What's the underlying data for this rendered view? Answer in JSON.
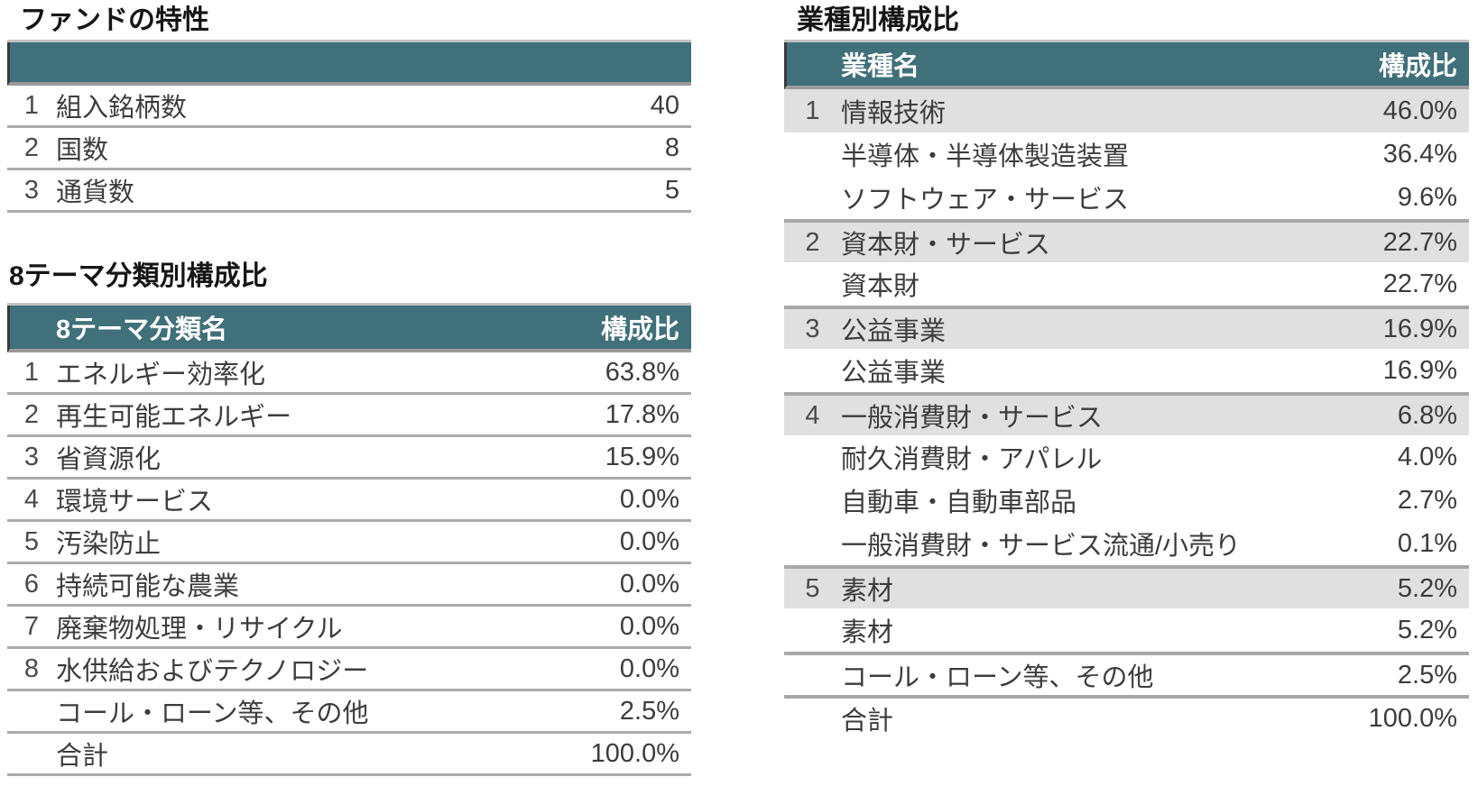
{
  "fund_characteristics": {
    "title": "ファンドの特性",
    "rows": [
      {
        "no": "1",
        "name": "組入銘柄数",
        "value": "40"
      },
      {
        "no": "2",
        "name": "国数",
        "value": "8"
      },
      {
        "no": "3",
        "name": "通貨数",
        "value": "5"
      }
    ]
  },
  "theme_table": {
    "title": "8テーマ分類別構成比",
    "header": {
      "name": "8テーマ分類名",
      "value": "構成比"
    },
    "rows": [
      {
        "no": "1",
        "name": "エネルギー効率化",
        "value": "63.8%"
      },
      {
        "no": "2",
        "name": "再生可能エネルギー",
        "value": "17.8%"
      },
      {
        "no": "3",
        "name": "省資源化",
        "value": "15.9%"
      },
      {
        "no": "4",
        "name": "環境サービス",
        "value": "0.0%"
      },
      {
        "no": "5",
        "name": "汚染防止",
        "value": "0.0%"
      },
      {
        "no": "6",
        "name": "持続可能な農業",
        "value": "0.0%"
      },
      {
        "no": "7",
        "name": "廃棄物処理・リサイクル",
        "value": "0.0%"
      },
      {
        "no": "8",
        "name": "水供給およびテクノロジー",
        "value": "0.0%"
      },
      {
        "no": "",
        "name": "コール・ローン等、その他",
        "value": "2.5%"
      },
      {
        "no": "",
        "name": "合計",
        "value": "100.0%"
      }
    ]
  },
  "industry_table": {
    "title": "業種別構成比",
    "header": {
      "name": "業種名",
      "value": "構成比"
    },
    "rows": [
      {
        "no": "1",
        "name": "情報技術",
        "value": "46.0%"
      },
      {
        "no": "",
        "name": "半導体・半導体製造装置",
        "value": "36.4%"
      },
      {
        "no": "",
        "name": "ソフトウェア・サービス",
        "value": "9.6%"
      },
      {
        "no": "2",
        "name": "資本財・サービス",
        "value": "22.7%"
      },
      {
        "no": "",
        "name": "資本財",
        "value": "22.7%"
      },
      {
        "no": "3",
        "name": "公益事業",
        "value": "16.9%"
      },
      {
        "no": "",
        "name": "公益事業",
        "value": "16.9%"
      },
      {
        "no": "4",
        "name": "一般消費財・サービス",
        "value": "6.8%"
      },
      {
        "no": "",
        "name": "耐久消費財・アパレル",
        "value": "4.0%"
      },
      {
        "no": "",
        "name": "自動車・自動車部品",
        "value": "2.7%"
      },
      {
        "no": "",
        "name": "一般消費財・サービス流通/小売り",
        "value": "0.1%"
      },
      {
        "no": "5",
        "name": "素材",
        "value": "5.2%"
      },
      {
        "no": "",
        "name": "素材",
        "value": "5.2%"
      },
      {
        "no": "",
        "name": "コール・ローン等、その他",
        "value": "2.5%"
      },
      {
        "no": "",
        "name": "合計",
        "value": "100.0%"
      }
    ]
  },
  "colors": {
    "header_teal": "#40707A",
    "major_row_gray": "#E0E0E0",
    "row_border_gray": "#ABABAB"
  }
}
